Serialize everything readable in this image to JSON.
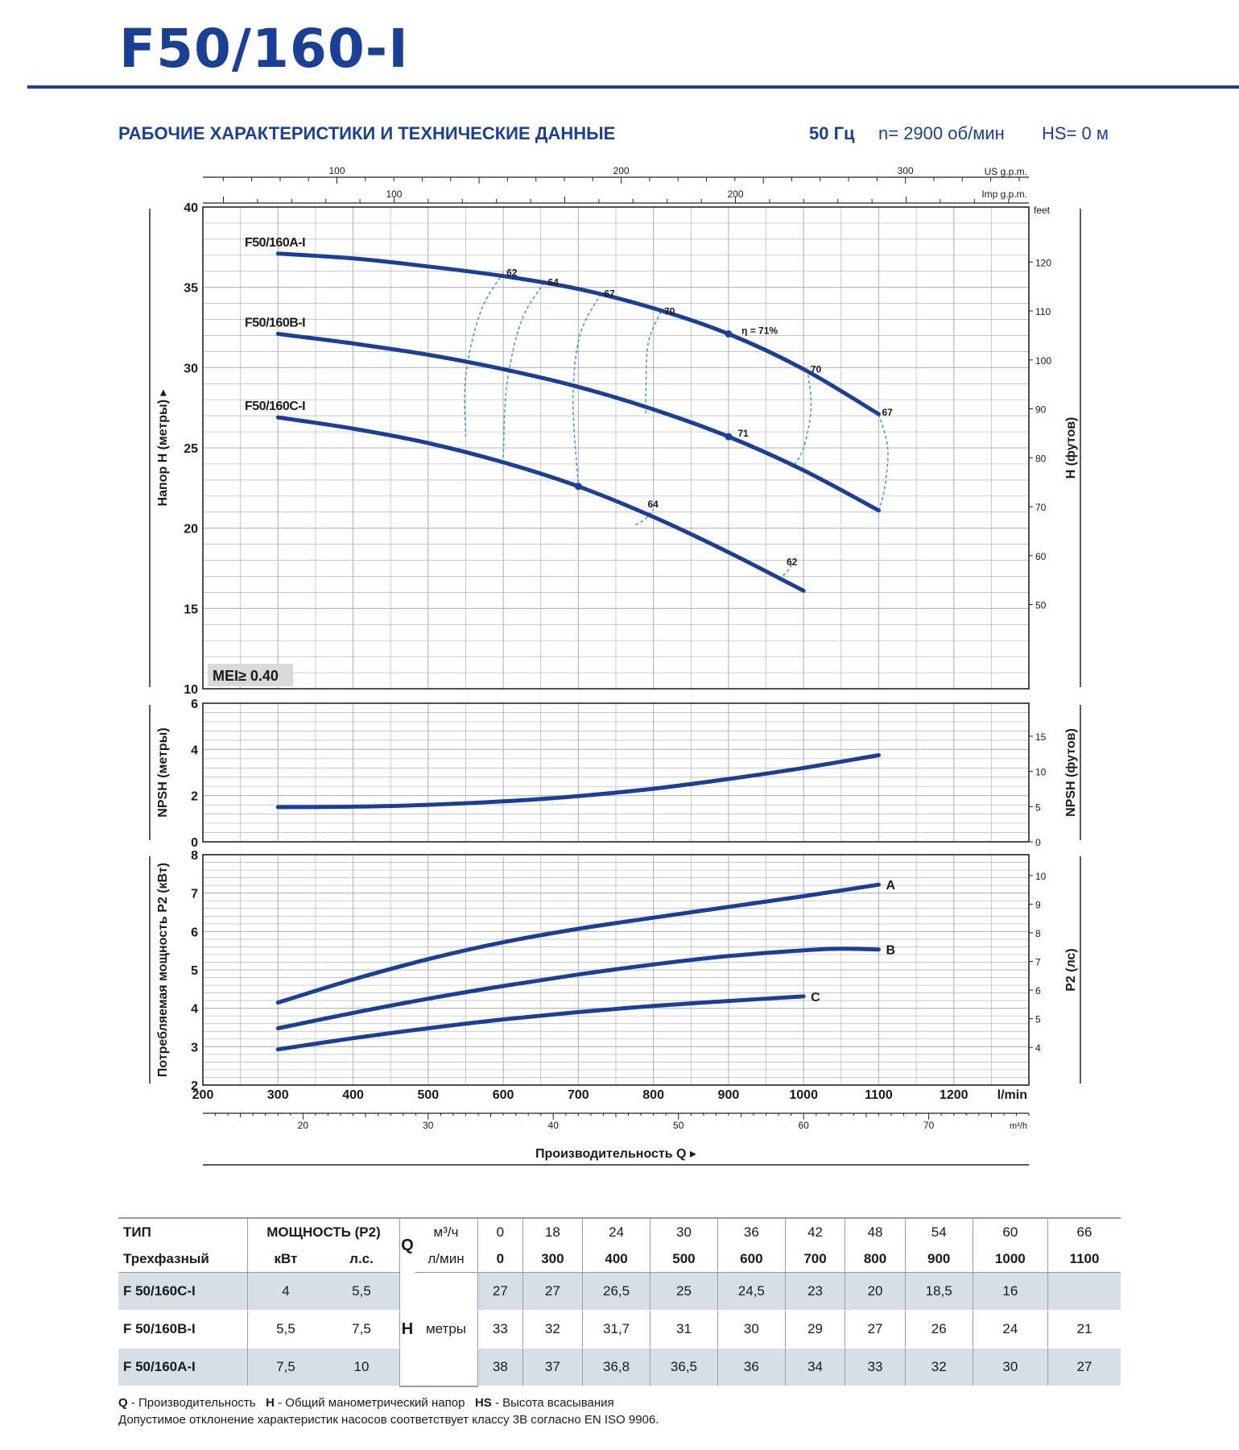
{
  "header": {
    "title": "F50/160-I",
    "section_heading": "РАБОЧИЕ ХАРАКТЕРИСТИКИ И ТЕХНИЧЕСКИЕ ДАННЫЕ",
    "frequency": "50 Гц",
    "speed": "n= 2900 об/мин",
    "suction": "HS= 0 м"
  },
  "colors": {
    "brand": "#1b3f94",
    "curve": "#1b3f94",
    "efficiency_line": "#3a9ad9",
    "grid": "#b4b4b4",
    "table_shade": "#d6dee6"
  },
  "chart_data": [
    {
      "id": "head",
      "type": "line",
      "ylabel": "Напор H (метры)",
      "y2label": "H (футов)",
      "x_unit": "l/min",
      "xlim": [
        200,
        1300
      ],
      "ylim": [
        10,
        40
      ],
      "y_ticks": [
        10,
        15,
        20,
        25,
        30,
        35,
        40
      ],
      "y2_unit": "feet",
      "y2_ticks": [
        50,
        60,
        70,
        80,
        90,
        100,
        110,
        120
      ],
      "top_axes": [
        {
          "unit": "US g.p.m.",
          "ticks": [
            100,
            200,
            300
          ]
        },
        {
          "unit": "Imp g.p.m.",
          "ticks": [
            100,
            200
          ]
        }
      ],
      "annotation": "MEI≥ 0.40",
      "series": [
        {
          "name": "F50/160A-I",
          "x": [
            300,
            400,
            500,
            600,
            700,
            800,
            900,
            1000,
            1100
          ],
          "y": [
            37.1,
            36.8,
            36.3,
            35.7,
            34.9,
            33.7,
            32.1,
            29.9,
            27.1
          ]
        },
        {
          "name": "F50/160B-I",
          "x": [
            300,
            400,
            500,
            600,
            700,
            800,
            900,
            1000,
            1100
          ],
          "y": [
            32.1,
            31.5,
            30.8,
            29.9,
            28.8,
            27.4,
            25.7,
            23.6,
            21.1
          ]
        },
        {
          "name": "F50/160C-I",
          "x": [
            300,
            400,
            500,
            600,
            700,
            800,
            900,
            1000
          ],
          "y": [
            26.9,
            26.2,
            25.3,
            24.1,
            22.6,
            20.7,
            18.5,
            16.1
          ]
        }
      ],
      "efficiency_labels": [
        {
          "text": "62",
          "x": 600,
          "y": 35.9
        },
        {
          "text": "64",
          "x": 655,
          "y": 35.3
        },
        {
          "text": "67",
          "x": 730,
          "y": 34.6
        },
        {
          "text": "70",
          "x": 810,
          "y": 33.5
        },
        {
          "text": "η = 71%",
          "x": 913,
          "y": 32.3
        },
        {
          "text": "70",
          "x": 1005,
          "y": 29.9
        },
        {
          "text": "67",
          "x": 1100,
          "y": 27.2
        },
        {
          "text": "71",
          "x": 908,
          "y": 25.9
        },
        {
          "text": "64",
          "x": 788,
          "y": 21.5
        },
        {
          "text": "62",
          "x": 973,
          "y": 17.9
        }
      ],
      "best_points": [
        {
          "x": 900,
          "y": 32.1
        },
        {
          "x": 900,
          "y": 25.7
        },
        {
          "x": 700,
          "y": 22.6
        }
      ],
      "iso_efficiency": [
        {
          "x": [
            600,
            570,
            550,
            550
          ],
          "y": [
            35.9,
            33.5,
            29.5,
            25.7
          ]
        },
        {
          "x": [
            655,
            625,
            605,
            600
          ],
          "y": [
            35.3,
            33.0,
            29.0,
            24.4
          ]
        },
        {
          "x": [
            730,
            702,
            693,
            700
          ],
          "y": [
            34.6,
            32.0,
            28.0,
            22.6
          ]
        },
        {
          "x": [
            810,
            793,
            790,
            790
          ],
          "y": [
            33.5,
            31.5,
            28.5,
            27.0
          ]
        },
        {
          "x": [
            1005,
            1010,
            1000,
            985
          ],
          "y": [
            29.9,
            27.5,
            25.0,
            23.8
          ]
        },
        {
          "x": [
            1100,
            1112,
            1108,
            1100
          ],
          "y": [
            27.1,
            25.0,
            22.5,
            21.1
          ]
        },
        {
          "x": [
            776,
            790,
            800
          ],
          "y": [
            20.2,
            20.6,
            21.2
          ]
        },
        {
          "x": [
            967,
            978,
            985
          ],
          "y": [
            16.8,
            17.3,
            17.8
          ]
        }
      ]
    },
    {
      "id": "npsh",
      "type": "line",
      "ylabel": "NPSH (метры)",
      "y2label": "NPSH (футов)",
      "xlim": [
        200,
        1300
      ],
      "ylim": [
        0,
        6
      ],
      "y_ticks": [
        0,
        2,
        4,
        6
      ],
      "y2_ticks": [
        0,
        5,
        10,
        15
      ],
      "series": [
        {
          "x": [
            300,
            400,
            500,
            600,
            700,
            800,
            900,
            1000,
            1100
          ],
          "y": [
            1.5,
            1.52,
            1.6,
            1.75,
            1.98,
            2.3,
            2.72,
            3.2,
            3.75
          ]
        }
      ]
    },
    {
      "id": "power",
      "type": "line",
      "ylabel": "Потребляемая мощность P2 (кВт)",
      "y2label": "P2 (лс)",
      "xlabel": "Производительность Q",
      "x_unit": "l/min",
      "xlim": [
        200,
        1300
      ],
      "ylim": [
        2,
        8
      ],
      "x_ticks": [
        200,
        300,
        400,
        500,
        600,
        700,
        800,
        900,
        1000,
        1100,
        1200
      ],
      "y_ticks": [
        2,
        3,
        4,
        5,
        6,
        7,
        8
      ],
      "y2_ticks": [
        4,
        5,
        6,
        7,
        8,
        9,
        10
      ],
      "bottom_axis": {
        "unit": "m³/h",
        "ticks": [
          20,
          30,
          40,
          50,
          60,
          70
        ]
      },
      "series": [
        {
          "name": "A",
          "x": [
            300,
            400,
            500,
            600,
            700,
            800,
            900,
            1000,
            1100
          ],
          "y": [
            4.15,
            4.75,
            5.28,
            5.72,
            6.07,
            6.36,
            6.64,
            6.92,
            7.22
          ]
        },
        {
          "name": "B",
          "x": [
            300,
            400,
            500,
            600,
            700,
            800,
            900,
            1000,
            1050,
            1100
          ],
          "y": [
            3.48,
            3.88,
            4.25,
            4.58,
            4.88,
            5.14,
            5.36,
            5.51,
            5.55,
            5.53
          ]
        },
        {
          "name": "C",
          "x": [
            300,
            400,
            500,
            600,
            700,
            800,
            900,
            1000
          ],
          "y": [
            2.93,
            3.22,
            3.48,
            3.71,
            3.9,
            4.06,
            4.19,
            4.31
          ]
        }
      ]
    }
  ],
  "table": {
    "type_label": "ТИП",
    "phase_label": "Трехфазный",
    "power_label": "МОЩНОСТЬ (P2)",
    "kw_label": "кВт",
    "hp_label": "л.с.",
    "q_label": "Q",
    "unit_m3h": "м³/ч",
    "unit_lmin": "л/мин",
    "flow_m3h": [
      "0",
      "18",
      "24",
      "30",
      "36",
      "42",
      "48",
      "54",
      "60",
      "66"
    ],
    "flow_lmin": [
      "0",
      "300",
      "400",
      "500",
      "600",
      "700",
      "800",
      "900",
      "1000",
      "1100"
    ],
    "h_label": "H",
    "h_unit": "метры",
    "rows": [
      {
        "model": "F 50/160C-I",
        "kw": "4",
        "hp": "5,5",
        "head": [
          "27",
          "27",
          "26,5",
          "25",
          "24,5",
          "23",
          "20",
          "18,5",
          "16",
          ""
        ]
      },
      {
        "model": "F 50/160B-I",
        "kw": "5,5",
        "hp": "7,5",
        "head": [
          "33",
          "32",
          "31,7",
          "31",
          "30",
          "29",
          "27",
          "26",
          "24",
          "21"
        ]
      },
      {
        "model": "F 50/160A-I",
        "kw": "7,5",
        "hp": "10",
        "head": [
          "38",
          "37",
          "36,8",
          "36,5",
          "36",
          "34",
          "33",
          "32",
          "30",
          "27"
        ]
      }
    ]
  },
  "footnotes": {
    "q_key": "Q",
    "q_desc": " - Производительность",
    "h_key": "H",
    "h_desc": " - Общий манометрический напор",
    "hs_key": "HS",
    "hs_desc": " - Высота всасывания",
    "tolerance": "Допустимое отклонение характеристик насосов соответствует классу 3B согласно EN ISO 9906."
  }
}
